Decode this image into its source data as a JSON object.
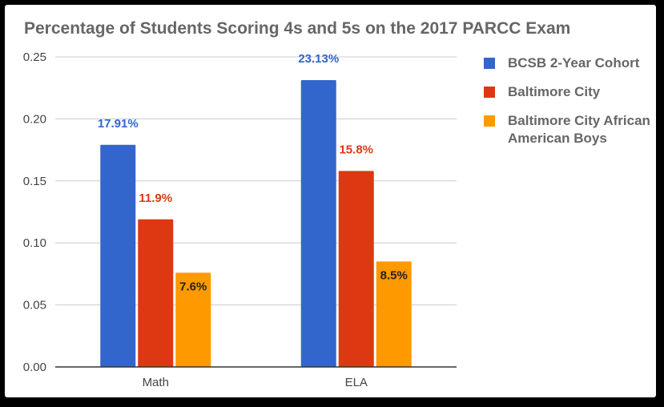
{
  "chart_data": {
    "type": "bar",
    "title": "Percentage of Students Scoring 4s and 5s on the 2017 PARCC Exam",
    "xlabel": "",
    "ylabel": "",
    "categories": [
      "Math",
      "ELA"
    ],
    "series": [
      {
        "name": "BCSB 2-Year Cohort",
        "values": [
          0.1791,
          0.2313
        ],
        "labels": [
          "17.91%",
          "23.13%"
        ],
        "color": "#3366cc",
        "label_color": "#3366cc"
      },
      {
        "name": "Baltimore City",
        "values": [
          0.119,
          0.158
        ],
        "labels": [
          "11.9%",
          "15.8%"
        ],
        "color": "#dc3912",
        "label_color": "#dc3912"
      },
      {
        "name": "Baltimore City African American Boys",
        "values": [
          0.076,
          0.085
        ],
        "labels": [
          "7.6%",
          "8.5%"
        ],
        "color": "#ff9900",
        "label_color": "#222222"
      }
    ],
    "ylim": [
      0,
      0.25
    ],
    "yticks": [
      "0.00",
      "0.05",
      "0.10",
      "0.15",
      "0.20",
      "0.25"
    ],
    "grid": true,
    "legend_position": "right"
  }
}
